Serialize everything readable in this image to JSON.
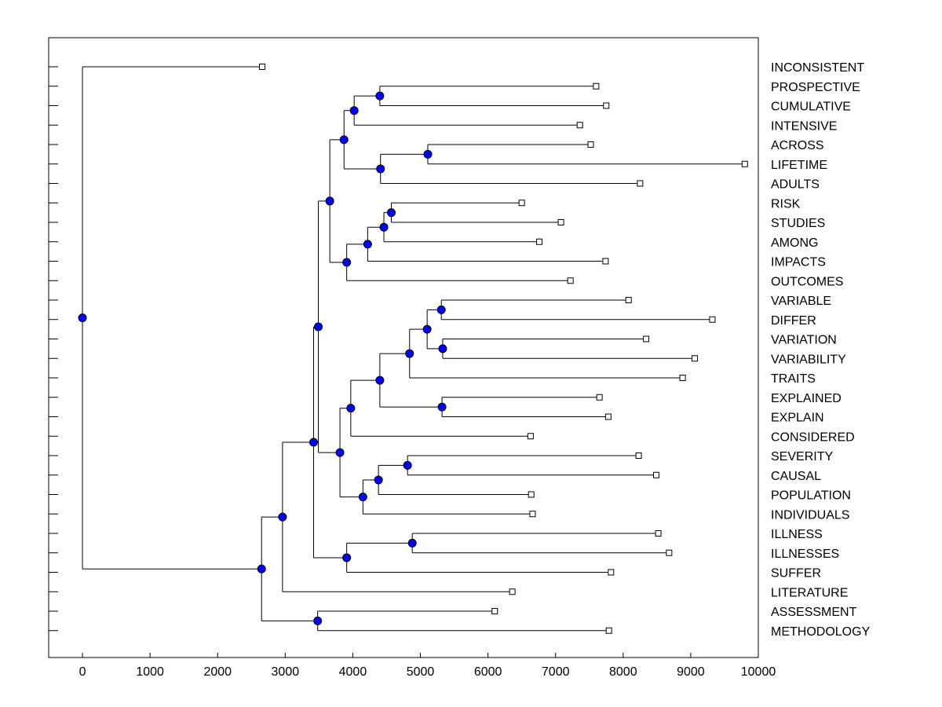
{
  "chart_data": {
    "type": "dendrogram",
    "title": "",
    "xlabel": "",
    "ylabel": "",
    "xlim": [
      -500,
      10000
    ],
    "x_ticks": [
      0,
      1000,
      2000,
      3000,
      4000,
      5000,
      6000,
      7000,
      8000,
      9000,
      10000
    ],
    "node_color": "#0000ff",
    "leaves": [
      {
        "label": "INCONSISTENT",
        "value": 2660
      },
      {
        "label": "PROSPECTIVE",
        "value": 7600
      },
      {
        "label": "CUMULATIVE",
        "value": 7750
      },
      {
        "label": "INTENSIVE",
        "value": 7360
      },
      {
        "label": "ACROSS",
        "value": 7520
      },
      {
        "label": "LIFETIME",
        "value": 9800
      },
      {
        "label": "ADULTS",
        "value": 8250
      },
      {
        "label": "RISK",
        "value": 6500
      },
      {
        "label": "STUDIES",
        "value": 7080
      },
      {
        "label": "AMONG",
        "value": 6760
      },
      {
        "label": "IMPACTS",
        "value": 7740
      },
      {
        "label": "OUTCOMES",
        "value": 7220
      },
      {
        "label": "VARIABLE",
        "value": 8080
      },
      {
        "label": "DIFFER",
        "value": 9320
      },
      {
        "label": "VARIATION",
        "value": 8340
      },
      {
        "label": "VARIABILITY",
        "value": 9060
      },
      {
        "label": "TRAITS",
        "value": 8880
      },
      {
        "label": "EXPLAINED",
        "value": 7650
      },
      {
        "label": "EXPLAIN",
        "value": 7780
      },
      {
        "label": "CONSIDERED",
        "value": 6630
      },
      {
        "label": "SEVERITY",
        "value": 8230
      },
      {
        "label": "CAUSAL",
        "value": 8490
      },
      {
        "label": "POPULATION",
        "value": 6640
      },
      {
        "label": "INDIVIDUALS",
        "value": 6660
      },
      {
        "label": "ILLNESS",
        "value": 8520
      },
      {
        "label": "ILLNESSES",
        "value": 8680
      },
      {
        "label": "SUFFER",
        "value": 7820
      },
      {
        "label": "LITERATURE",
        "value": 6360
      },
      {
        "label": "ASSESSMENT",
        "value": 6100
      },
      {
        "label": "METHODOLOGY",
        "value": 7790
      }
    ],
    "merges": [
      {
        "id": "N1",
        "value": 4400,
        "children": [
          "L1",
          "L2"
        ]
      },
      {
        "id": "N2",
        "value": 4020,
        "children": [
          "N1",
          "L3"
        ]
      },
      {
        "id": "N3",
        "value": 5110,
        "children": [
          "L4",
          "L5"
        ]
      },
      {
        "id": "N4",
        "value": 4410,
        "children": [
          "N3",
          "L6"
        ]
      },
      {
        "id": "N5",
        "value": 3870,
        "children": [
          "N2",
          "N4"
        ]
      },
      {
        "id": "N6",
        "value": 4570,
        "children": [
          "L7",
          "L8"
        ]
      },
      {
        "id": "N7",
        "value": 4460,
        "children": [
          "N6",
          "L9"
        ]
      },
      {
        "id": "N8",
        "value": 4220,
        "children": [
          "N7",
          "L10"
        ]
      },
      {
        "id": "N9",
        "value": 3910,
        "children": [
          "N8",
          "L11"
        ]
      },
      {
        "id": "N10",
        "value": 3660,
        "children": [
          "N5",
          "N9"
        ]
      },
      {
        "id": "N11",
        "value": 5310,
        "children": [
          "L12",
          "L13"
        ]
      },
      {
        "id": "N12",
        "value": 5330,
        "children": [
          "L14",
          "L15"
        ]
      },
      {
        "id": "N13",
        "value": 5100,
        "children": [
          "N11",
          "N12"
        ]
      },
      {
        "id": "N14",
        "value": 4840,
        "children": [
          "N13",
          "L16"
        ]
      },
      {
        "id": "N15",
        "value": 5320,
        "children": [
          "L17",
          "L18"
        ]
      },
      {
        "id": "N16",
        "value": 4400,
        "children": [
          "N14",
          "N15"
        ]
      },
      {
        "id": "N17",
        "value": 3970,
        "children": [
          "N16",
          "L19"
        ]
      },
      {
        "id": "N18",
        "value": 4810,
        "children": [
          "L20",
          "L21"
        ]
      },
      {
        "id": "N19",
        "value": 4380,
        "children": [
          "N18",
          "L22"
        ]
      },
      {
        "id": "N20",
        "value": 4150,
        "children": [
          "N19",
          "L23"
        ]
      },
      {
        "id": "N21",
        "value": 3810,
        "children": [
          "N17",
          "N20"
        ]
      },
      {
        "id": "N22",
        "value": 3490,
        "children": [
          "N10",
          "N21"
        ]
      },
      {
        "id": "N23",
        "value": 4880,
        "children": [
          "L24",
          "L25"
        ]
      },
      {
        "id": "N24",
        "value": 3910,
        "children": [
          "N23",
          "L26"
        ]
      },
      {
        "id": "N25",
        "value": 3420,
        "children": [
          "N22",
          "N24"
        ]
      },
      {
        "id": "N26",
        "value": 2960,
        "children": [
          "N25",
          "L27"
        ]
      },
      {
        "id": "N27",
        "value": 3480,
        "children": [
          "L28",
          "L29"
        ]
      },
      {
        "id": "N28",
        "value": 2650,
        "children": [
          "N26",
          "N27"
        ]
      },
      {
        "id": "N29",
        "value": 0,
        "children": [
          "L0",
          "N28"
        ]
      }
    ]
  }
}
